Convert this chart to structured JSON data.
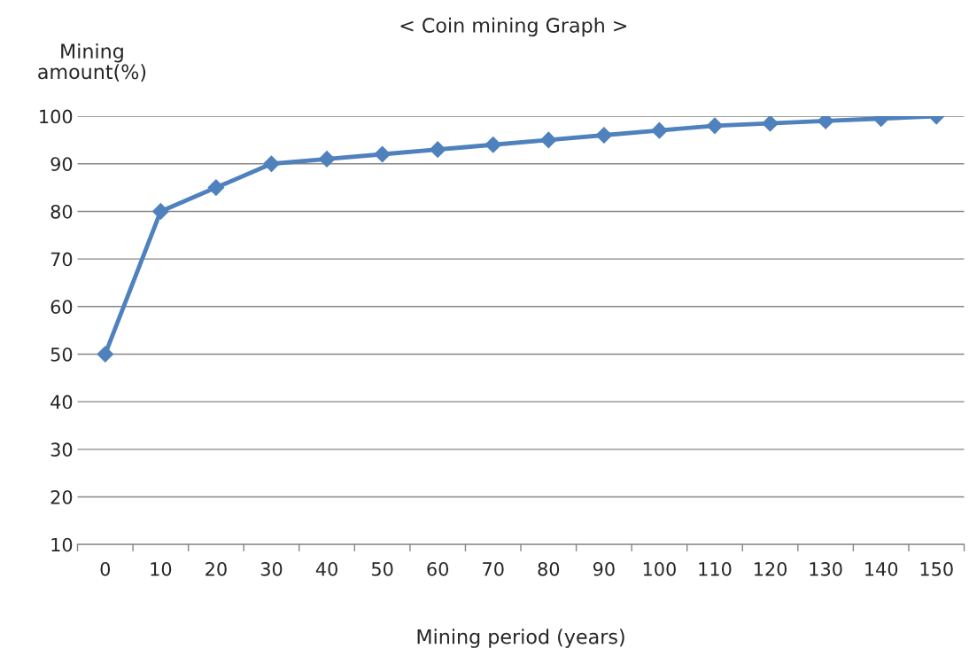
{
  "chart_data": {
    "type": "line",
    "title": "< Coin mining Graph >",
    "xlabel": "Mining period (years)",
    "ylabel": "Mining\namount(%)",
    "categories": [
      "0",
      "10",
      "20",
      "30",
      "40",
      "50",
      "60",
      "70",
      "80",
      "90",
      "100",
      "110",
      "120",
      "130",
      "140",
      "150"
    ],
    "series": [
      {
        "color": "#4f81bd",
        "values": [
          50,
          80,
          85,
          90,
          91,
          92,
          93,
          94,
          95,
          96,
          97,
          98,
          98.5,
          99,
          99.5,
          100
        ]
      }
    ],
    "ylim": [
      10,
      100
    ],
    "yticks": [
      10,
      20,
      30,
      40,
      50,
      60,
      70,
      80,
      90,
      100
    ],
    "grid": "y",
    "marker": "diamond",
    "line_style": "solid",
    "legend": false
  }
}
